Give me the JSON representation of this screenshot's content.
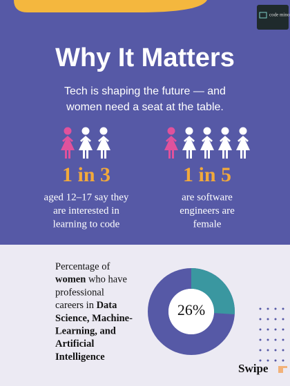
{
  "header": {
    "title": "Why It Matters",
    "subtitle_lines": [
      "Tech is shaping the future — and",
      "women need a seat at the table."
    ],
    "logo": "code minor"
  },
  "stats": [
    {
      "figure": "1 in 3",
      "lines": [
        "aged 12–17 say they",
        "are interested in",
        "learning to code"
      ]
    },
    {
      "figure": "1 in 5",
      "lines": [
        "are software",
        "engineers are",
        "female"
      ]
    }
  ],
  "donut_section": {
    "text_lines": [
      [
        {
          "text": "Percentage of",
          "bold": false
        }
      ],
      [
        {
          "text": "women",
          "bold": true
        },
        {
          "text": " who have",
          "bold": false
        }
      ],
      [
        {
          "text": "professional",
          "bold": false
        }
      ],
      [
        {
          "text": "careers in ",
          "bold": false
        },
        {
          "text": "Data",
          "bold": true
        }
      ],
      [
        {
          "text": "Science, Machine-",
          "bold": true
        }
      ],
      [
        {
          "text": "Learning, and",
          "bold": true
        }
      ],
      [
        {
          "text": "Artificial",
          "bold": true
        }
      ],
      [
        {
          "text": "Intelligence",
          "bold": true
        }
      ]
    ],
    "donut": {
      "value": 26,
      "label": "26%",
      "color": "#3a97a0",
      "track_color": "#5659a6"
    }
  },
  "footer": {
    "swipe": "Swipe"
  }
}
